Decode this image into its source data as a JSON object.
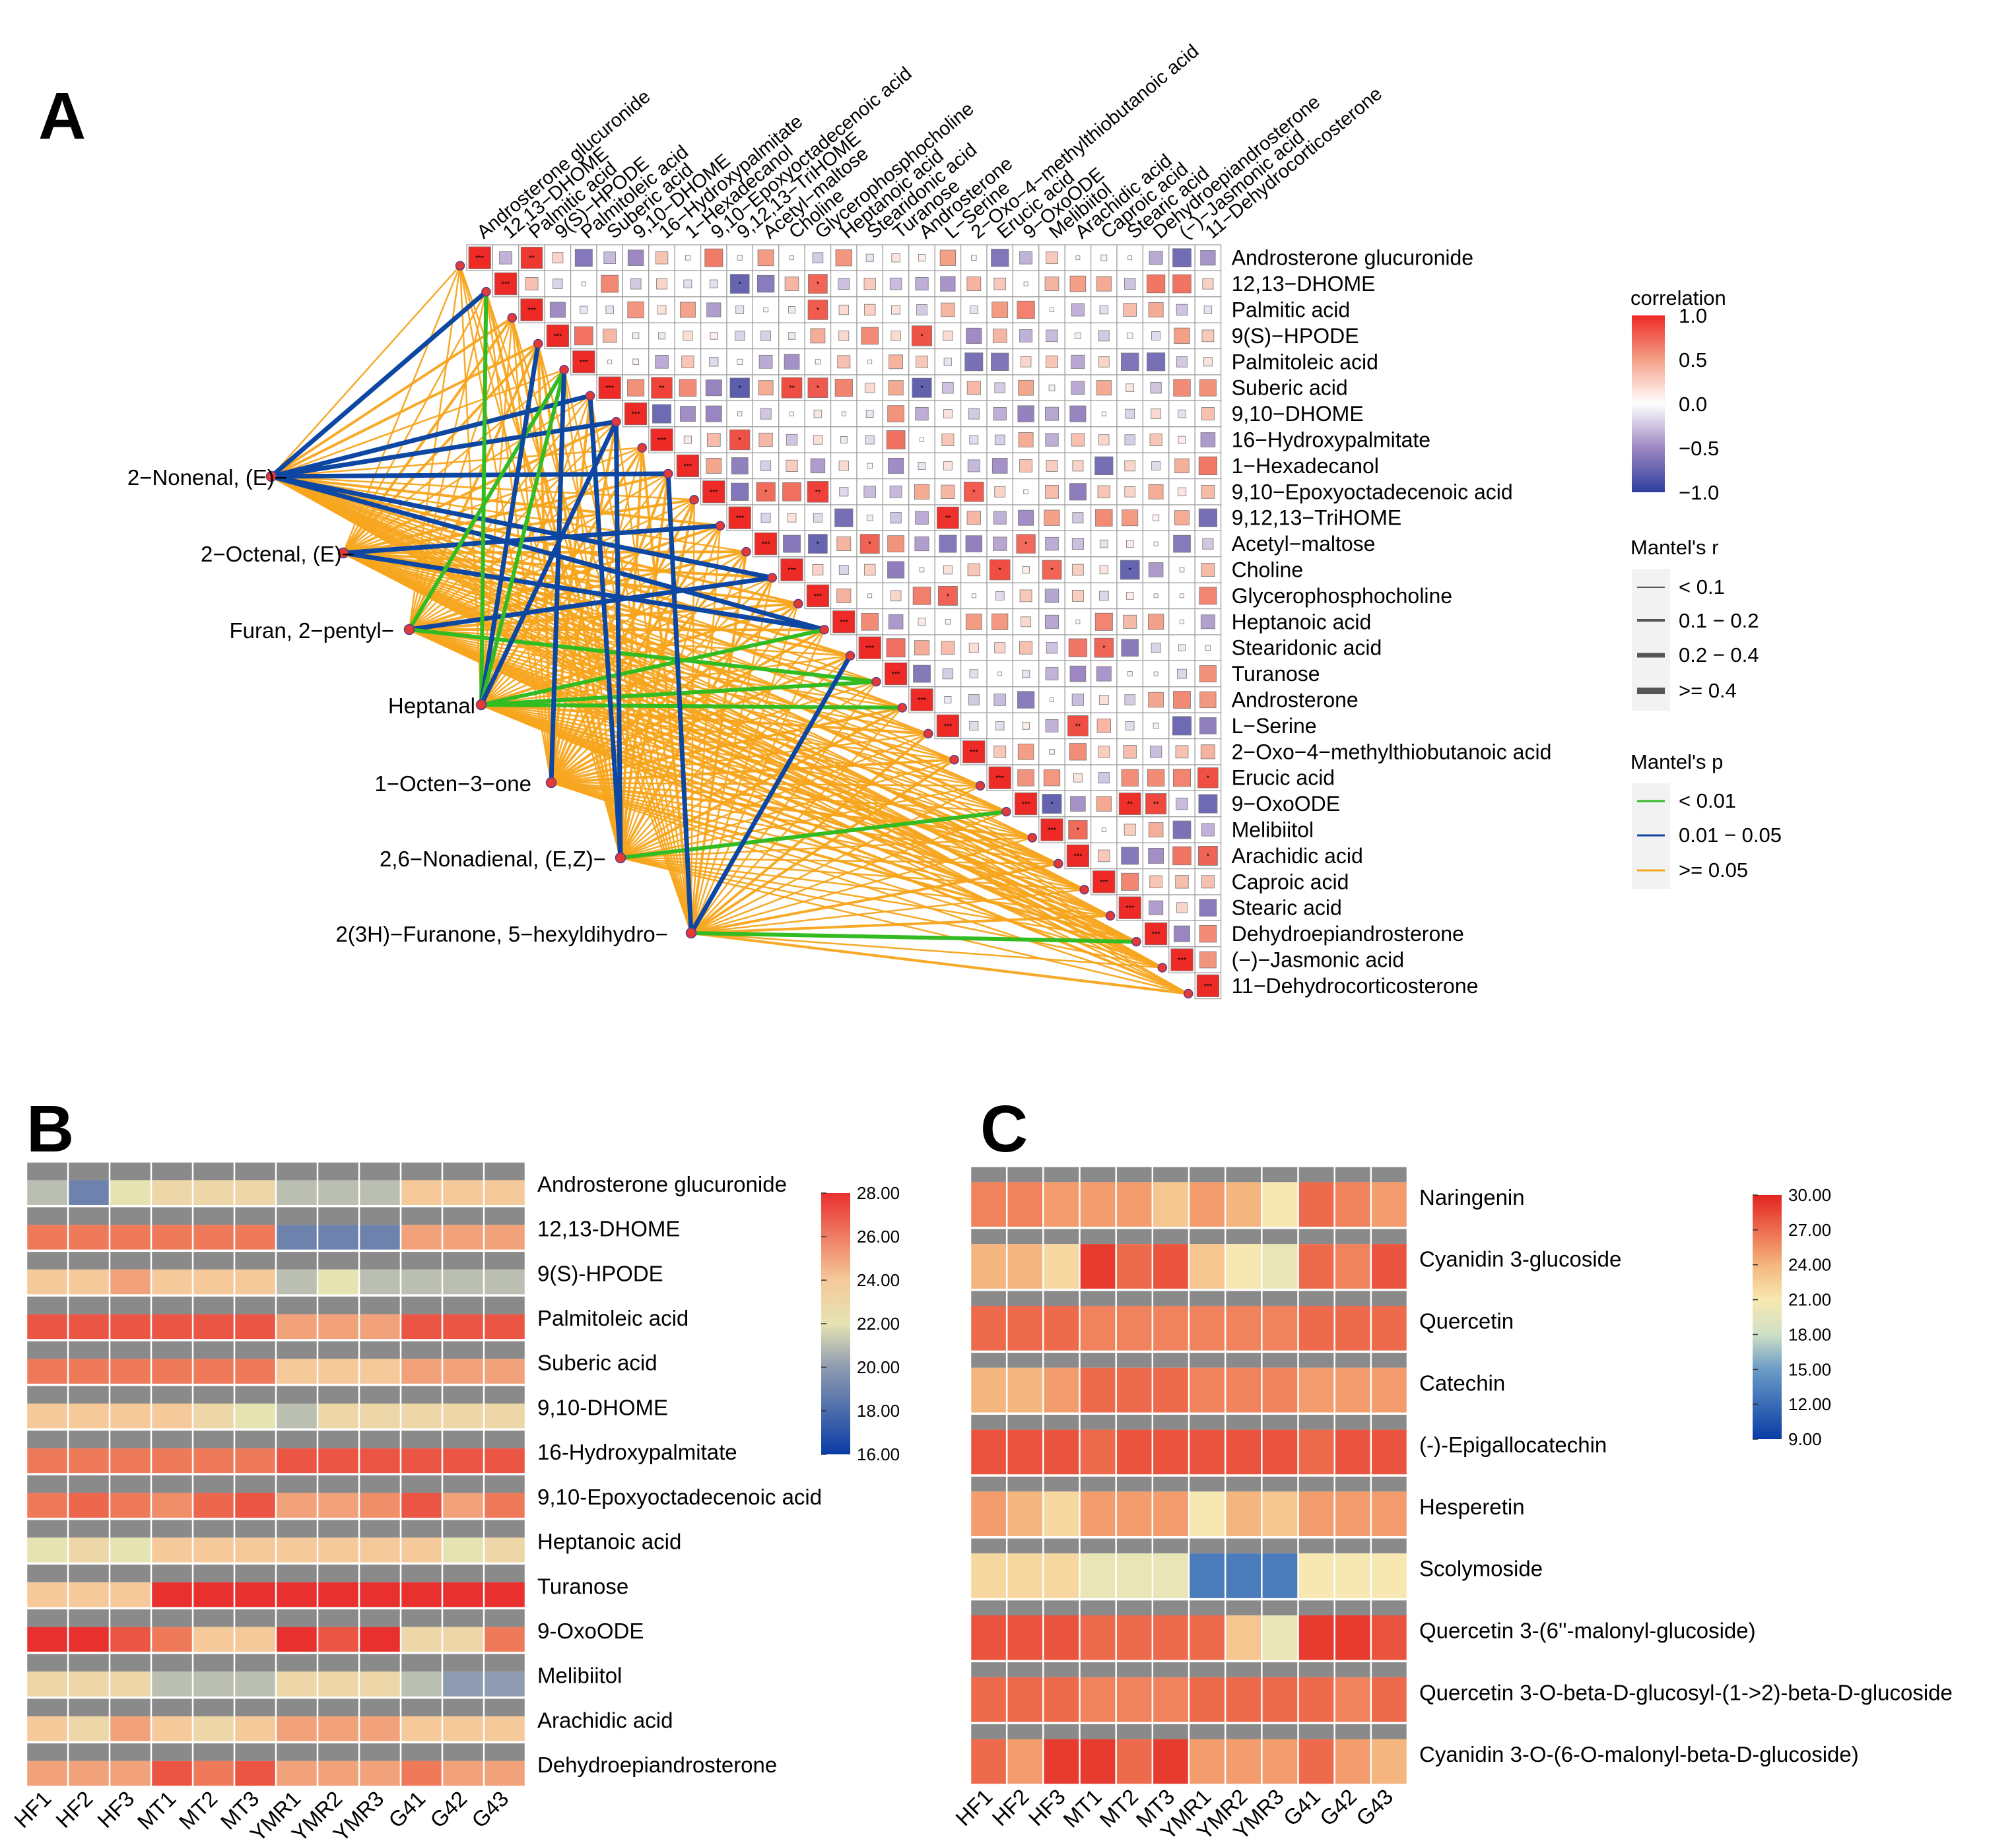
{
  "panel_labels": {
    "a": "A",
    "b": "B",
    "c": "C"
  },
  "colors": {
    "blue": "#2c3f9d",
    "white": "#ffffff",
    "red": "#ee2a26",
    "mantel_green": "#33bb22",
    "mantel_blue": "#0d47a1",
    "mantel_orange": "#f7a51c",
    "gray": "#888888"
  },
  "chart_data": [
    {
      "id": "panelA",
      "type": "heatmap",
      "subtype": "mantel-correlation",
      "metabolites": [
        "Androsterone glucuronide",
        "12,13−DHOME",
        "Palmitic acid",
        "9(S)−HPODE",
        "Palmitoleic acid",
        "Suberic acid",
        "9,10−DHOME",
        "16−Hydroxypalmitate",
        "1−Hexadecanol",
        "9,10−Epoxyoctadecenoic acid",
        "9,12,13−TriHOME",
        "Acetyl−maltose",
        "Choline",
        "Glycerophosphocholine",
        "Heptanoic acid",
        "Stearidonic acid",
        "Turanose",
        "Androsterone",
        "L−Serine",
        "2−Oxo−4−methylthiobutanoic acid",
        "Erucic acid",
        "9−OxoODE",
        "Melibiitol",
        "Arachidic acid",
        "Caproic acid",
        "Stearic acid",
        "Dehydroepiandrosterone",
        "(−)−Jasmonic acid",
        "11−Dehydrocorticosterone"
      ],
      "volatiles": [
        "2−Nonenal, (E)−",
        "2−Octenal, (E)−",
        "Furan, 2−pentyl−",
        "Heptanal",
        "1−Octen−3−one",
        "2,6−Nonadienal, (E,Z)−",
        "2(3H)−Furanone, 5−hexyldihydro−"
      ],
      "highlight_links": [
        {
          "from": 0,
          "to": 1,
          "p": "blue"
        },
        {
          "from": 0,
          "to": 5,
          "p": "blue"
        },
        {
          "from": 0,
          "to": 6,
          "p": "blue"
        },
        {
          "from": 0,
          "to": 8,
          "p": "blue"
        },
        {
          "from": 0,
          "to": 12,
          "p": "blue"
        },
        {
          "from": 0,
          "to": 14,
          "p": "blue"
        },
        {
          "from": 1,
          "to": 10,
          "p": "blue"
        },
        {
          "from": 1,
          "to": 14,
          "p": "blue"
        },
        {
          "from": 2,
          "to": 4,
          "p": "green"
        },
        {
          "from": 2,
          "to": 12,
          "p": "blue"
        },
        {
          "from": 2,
          "to": 16,
          "p": "green"
        },
        {
          "from": 3,
          "to": 1,
          "p": "green"
        },
        {
          "from": 3,
          "to": 3,
          "p": "blue"
        },
        {
          "from": 3,
          "to": 4,
          "p": "green"
        },
        {
          "from": 3,
          "to": 6,
          "p": "blue"
        },
        {
          "from": 3,
          "to": 14,
          "p": "green"
        },
        {
          "from": 3,
          "to": 16,
          "p": "green"
        },
        {
          "from": 3,
          "to": 17,
          "p": "green"
        },
        {
          "from": 4,
          "to": 4,
          "p": "blue"
        },
        {
          "from": 5,
          "to": 5,
          "p": "blue"
        },
        {
          "from": 5,
          "to": 6,
          "p": "blue"
        },
        {
          "from": 5,
          "to": 21,
          "p": "green"
        },
        {
          "from": 6,
          "to": 8,
          "p": "blue"
        },
        {
          "from": 6,
          "to": 15,
          "p": "blue"
        },
        {
          "from": 6,
          "to": 26,
          "p": "green"
        }
      ],
      "correlation_legend": {
        "title": "correlation",
        "ticks": [
          "1.0",
          "0.5",
          "0.0",
          "−0.5",
          "−1.0"
        ]
      },
      "mantel_r_legend": {
        "title": "Mantel's r",
        "items": [
          "< 0.1",
          "0.1 − 0.2",
          "0.2 − 0.4",
          ">= 0.4"
        ]
      },
      "mantel_p_legend": {
        "title": "Mantel's p",
        "items": [
          "< 0.01",
          "0.01 − 0.05",
          ">= 0.05"
        ]
      }
    },
    {
      "id": "panelB",
      "type": "heatmap",
      "samples": [
        "HF1",
        "HF2",
        "HF3",
        "MT1",
        "MT2",
        "MT3",
        "YMR1",
        "YMR2",
        "YMR3",
        "G41",
        "G42",
        "G43"
      ],
      "rows": [
        "Androsterone glucuronide",
        "12,13-DHOME",
        "9(S)-HPODE",
        "Palmitoleic acid",
        "Suberic acid",
        "9,10-DHOME",
        "16-Hydroxypalmitate",
        "9,10-Epoxyoctadecenoic acid",
        "Heptanoic acid",
        "Turanose",
        "9-OxoODE",
        "Melibiitol",
        "Arachidic acid",
        "Dehydroepiandrosterone"
      ],
      "values": [
        [
          21,
          19,
          22,
          23,
          23,
          23,
          21,
          21,
          21,
          24,
          24,
          24
        ],
        [
          26,
          26,
          26,
          26,
          26,
          26,
          19,
          19,
          19,
          25,
          25,
          25
        ],
        [
          24,
          24,
          25,
          24,
          24,
          24,
          21,
          22,
          21,
          21,
          21,
          21
        ],
        [
          27,
          27,
          27,
          27,
          27,
          27,
          25,
          25,
          25,
          27,
          27,
          27
        ],
        [
          26,
          26,
          26,
          26,
          26,
          26,
          24,
          24,
          24,
          25,
          25,
          25
        ],
        [
          24,
          24,
          24,
          24,
          23,
          22,
          21,
          23,
          23,
          23,
          23,
          23
        ],
        [
          26,
          26,
          26,
          26,
          26,
          26,
          27,
          27,
          27,
          27,
          27,
          27
        ],
        [
          26,
          26.5,
          26,
          25.5,
          26.5,
          27,
          25,
          25,
          25.5,
          27,
          25,
          26
        ],
        [
          22,
          23,
          22,
          24,
          24,
          24,
          24,
          24,
          24,
          24,
          22,
          23
        ],
        [
          24,
          24,
          24,
          28,
          28,
          28,
          28,
          28,
          28,
          28,
          28,
          28
        ],
        [
          28,
          28,
          27,
          26,
          24,
          24,
          28,
          27,
          28,
          23,
          23,
          26
        ],
        [
          23,
          23,
          23,
          21,
          21,
          21,
          23,
          23,
          23,
          21,
          20,
          20
        ],
        [
          24,
          23,
          25,
          24,
          23,
          24,
          25,
          25,
          25,
          24,
          24,
          24
        ],
        [
          25,
          25,
          25,
          27,
          26,
          27,
          25,
          25,
          25,
          26,
          25,
          25
        ]
      ],
      "scale": {
        "min": 16,
        "max": 28,
        "ticks": [
          "28.00",
          "26.00",
          "24.00",
          "22.00",
          "20.00",
          "18.00",
          "16.00"
        ]
      }
    },
    {
      "id": "panelC",
      "type": "heatmap",
      "samples": [
        "HF1",
        "HF2",
        "HF3",
        "MT1",
        "MT2",
        "MT3",
        "YMR1",
        "YMR2",
        "YMR3",
        "G41",
        "G42",
        "G43"
      ],
      "rows": [
        "Naringenin",
        "Cyanidin 3-glucoside",
        "Quercetin",
        "Catechin",
        "(-)-Epigallocatechin",
        "Hesperetin",
        "Scolymoside",
        "Quercetin 3-(6''-malonyl-glucoside)",
        "Quercetin 3-O-beta-D-glucosyl-(1->2)-beta-D-glucoside",
        "Cyanidin 3-O-(6-O-malonyl-beta-D-glucoside)"
      ],
      "values": [
        [
          26,
          26,
          25,
          25,
          25,
          23,
          25,
          24,
          21,
          27,
          26,
          25
        ],
        [
          24,
          24,
          22,
          29,
          27,
          28,
          23,
          21,
          20,
          27,
          26,
          28
        ],
        [
          27,
          27,
          27,
          26,
          26,
          26,
          26,
          26,
          26,
          27,
          27,
          27
        ],
        [
          24,
          24,
          25,
          27,
          27,
          27,
          26,
          26,
          26,
          25,
          25,
          25
        ],
        [
          28,
          28,
          28,
          27,
          28,
          28,
          28,
          28,
          28,
          27,
          28,
          28
        ],
        [
          25,
          24,
          22,
          25,
          25,
          25,
          21,
          24,
          23,
          25,
          25,
          25
        ],
        [
          22,
          22,
          22,
          20,
          20,
          20,
          13,
          13,
          13,
          21,
          21,
          21
        ],
        [
          28,
          28,
          28,
          27,
          27,
          27,
          27,
          23,
          20,
          29,
          29,
          28
        ],
        [
          27,
          27,
          27,
          26,
          26,
          26,
          27,
          27,
          27,
          27,
          26,
          27
        ],
        [
          27,
          25,
          29,
          29,
          27,
          29,
          25,
          25,
          25,
          27,
          25,
          24
        ]
      ],
      "scale": {
        "min": 9,
        "max": 30,
        "ticks": [
          "30.00",
          "27.00",
          "24.00",
          "21.00",
          "18.00",
          "15.00",
          "12.00",
          "9.00"
        ]
      }
    }
  ]
}
